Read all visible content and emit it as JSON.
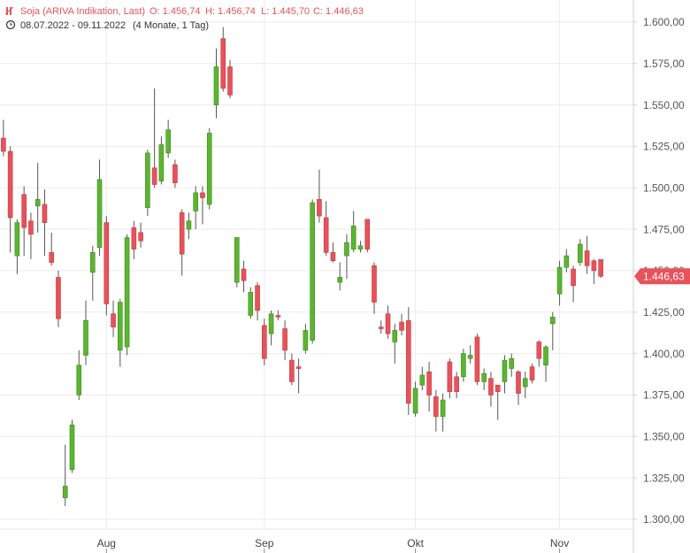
{
  "chart_data": {
    "type": "candlestick",
    "title": "Soja (ARIVA Indikation, Last)",
    "ohlc_summary": [
      "O: 1.456,74",
      "H: 1.456,74",
      "L: 1.445,70",
      "C: 1.446,63"
    ],
    "date_range": "08.07.2022 - 09.11.2022",
    "period": "(4 Monate, 1 Tag)",
    "up_color": "#5cb531",
    "down_color": "#e8525a",
    "grid": true,
    "last_price": {
      "value": 1446.63,
      "label": "1.446,63"
    },
    "xlim": [
      -0.5,
      91.75
    ],
    "xticks": [
      {
        "value": 15,
        "label": "Aug"
      },
      {
        "value": 38,
        "label": "Sep"
      },
      {
        "value": 60,
        "label": "Okt"
      },
      {
        "value": 81,
        "label": "Nov"
      }
    ],
    "ylim": [
      1294.1,
      1613.3
    ],
    "yticks": [
      {
        "value": 1300,
        "label": "1.300,00"
      },
      {
        "value": 1325,
        "label": "1.325,00"
      },
      {
        "value": 1350,
        "label": "1.350,00"
      },
      {
        "value": 1375,
        "label": "1.375,00"
      },
      {
        "value": 1400,
        "label": "1.400,00"
      },
      {
        "value": 1425,
        "label": "1.425,00"
      },
      {
        "value": 1450,
        "label": "1.450,00"
      },
      {
        "value": 1475,
        "label": "1.475,00"
      },
      {
        "value": 1500,
        "label": "1.500,00"
      },
      {
        "value": 1525,
        "label": "1.525,00"
      },
      {
        "value": 1550,
        "label": "1.550,00"
      },
      {
        "value": 1575,
        "label": "1.575,00"
      },
      {
        "value": 1600,
        "label": "1.600,00"
      }
    ],
    "open": [
      1530,
      1522,
      1459,
      1496,
      1480,
      1489,
      1490,
      1461,
      1446,
      1313,
      1330,
      1375,
      1399,
      1449,
      1464,
      1479,
      1424,
      1402,
      1404,
      1476,
      1473,
      1488,
      1512,
      1504,
      1521,
      1514,
      1485,
      1475,
      1486,
      1497,
      1490,
      1550,
      1590,
      1573,
      1443,
      1451,
      1423,
      1441,
      1417,
      1412,
      1423,
      1415,
      1396,
      1392,
      1402,
      1408,
      1493,
      1482,
      1461,
      1443,
      1459,
      1463,
      1463,
      1481,
      1453,
      1416,
      1424,
      1407,
      1419,
      1420,
      1364,
      1381,
      1389,
      1374,
      1362,
      1395,
      1386,
      1386,
      1397,
      1410,
      1383,
      1385,
      1381,
      1383,
      1391,
      1389,
      1380,
      1392,
      1407,
      1393,
      1418,
      1436,
      1452,
      1451,
      1455,
      1462,
      1456,
      1456.74
    ],
    "high": [
      1541,
      1525,
      1481,
      1501,
      1485,
      1515,
      1499,
      1473,
      1450,
      1345,
      1360,
      1402,
      1432,
      1465,
      1517,
      1483,
      1432,
      1433,
      1472,
      1480,
      1479,
      1523,
      1560,
      1531,
      1541,
      1517,
      1487,
      1485,
      1501,
      1501,
      1536,
      1584,
      1597,
      1577,
      1470,
      1456,
      1440,
      1443,
      1421,
      1426,
      1426,
      1420,
      1400,
      1397,
      1418,
      1493,
      1511,
      1492,
      1467,
      1455,
      1472,
      1486,
      1468,
      1481,
      1455,
      1420,
      1429,
      1418,
      1424,
      1428,
      1383,
      1392,
      1395,
      1378,
      1376,
      1397,
      1389,
      1403,
      1405,
      1412,
      1391,
      1389,
      1381,
      1399,
      1400,
      1390,
      1389,
      1394,
      1408,
      1405,
      1425,
      1456,
      1463,
      1453,
      1469,
      1471,
      1457,
      1456.74
    ],
    "low": [
      1519,
      1461,
      1448,
      1459,
      1457,
      1473,
      1459,
      1453,
      1416,
      1308,
      1328,
      1372,
      1393,
      1432,
      1459,
      1423,
      1410,
      1392,
      1399,
      1457,
      1464,
      1483,
      1500,
      1502,
      1518,
      1500,
      1447,
      1469,
      1475,
      1478,
      1487,
      1542,
      1558,
      1554,
      1440,
      1437,
      1421,
      1420,
      1393,
      1405,
      1420,
      1396,
      1381,
      1376,
      1400,
      1406,
      1479,
      1459,
      1455,
      1438,
      1445,
      1461,
      1461,
      1461,
      1424,
      1412,
      1409,
      1394,
      1411,
      1363,
      1362,
      1378,
      1365,
      1353,
      1353,
      1373,
      1373,
      1383,
      1394,
      1381,
      1378,
      1368,
      1360,
      1376,
      1386,
      1369,
      1373,
      1382,
      1392,
      1383,
      1402,
      1429,
      1449,
      1431,
      1453,
      1448,
      1442,
      1445.7
    ],
    "close": [
      1522,
      1482,
      1479,
      1476,
      1472,
      1493,
      1479,
      1455,
      1421,
      1320,
      1357,
      1393,
      1420,
      1461,
      1505,
      1430,
      1416,
      1431,
      1470,
      1463,
      1468,
      1521,
      1502,
      1526,
      1535,
      1503,
      1460,
      1480,
      1497,
      1494,
      1533,
      1573,
      1560,
      1556,
      1470,
      1444,
      1437,
      1426,
      1397,
      1424,
      1422,
      1402,
      1383,
      1391,
      1414,
      1491,
      1483,
      1461,
      1456,
      1446,
      1467,
      1477,
      1465,
      1463,
      1431,
      1415,
      1412,
      1414,
      1414,
      1370,
      1379,
      1387,
      1375,
      1362,
      1372,
      1377,
      1377,
      1400,
      1399,
      1383,
      1388,
      1375,
      1377,
      1396,
      1397,
      1376,
      1385,
      1384,
      1397,
      1404,
      1422,
      1452,
      1459,
      1441,
      1466,
      1453,
      1450,
      1446.63
    ]
  }
}
